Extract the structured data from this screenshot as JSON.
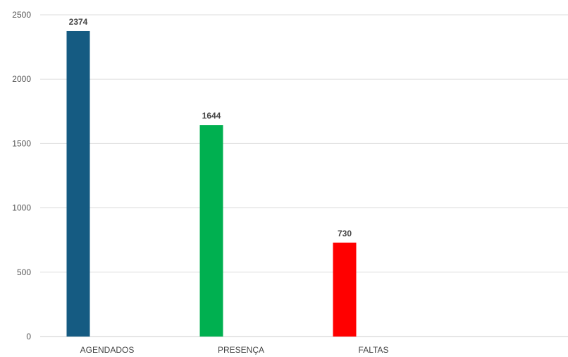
{
  "chart_data": {
    "type": "bar",
    "title": "",
    "xlabel": "",
    "ylabel": "",
    "categories": [
      "AGENDADOS",
      "PRESENÇA",
      "FALTAS"
    ],
    "values": [
      2374,
      1644,
      730
    ],
    "data_labels": [
      "2374",
      "1644",
      "730"
    ],
    "colors": [
      "#155b82",
      "#00b050",
      "#ff0000"
    ],
    "ylim": [
      0,
      2500
    ],
    "yticks": [
      0,
      500,
      1000,
      1500,
      2000,
      2500
    ],
    "ytick_labels": [
      "0",
      "500",
      "1000",
      "1500",
      "2000",
      "2500"
    ],
    "grid": true,
    "legend": "none"
  }
}
